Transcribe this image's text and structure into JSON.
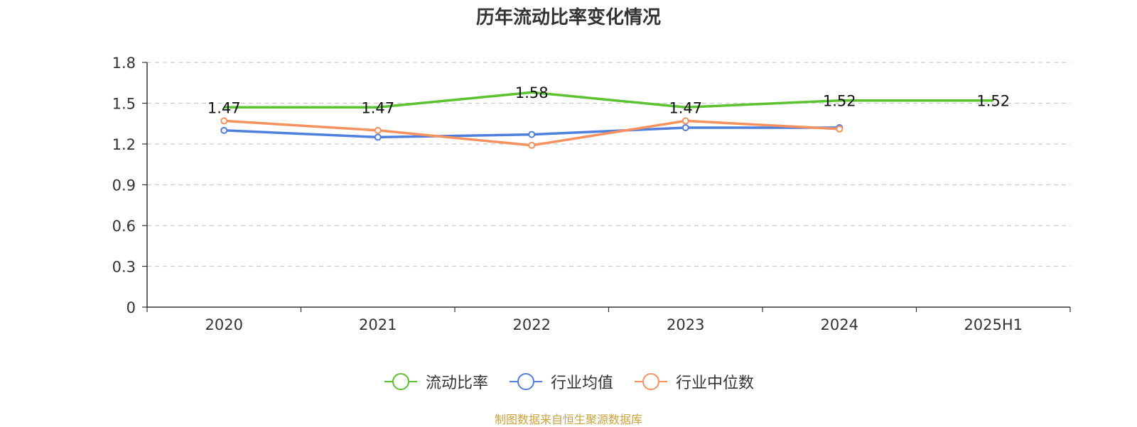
{
  "chart_data": {
    "type": "line",
    "title": "历年流动比率变化情况",
    "categories": [
      "2020",
      "2021",
      "2022",
      "2023",
      "2024",
      "2025H1"
    ],
    "ylim": [
      0,
      1.8
    ],
    "yticks": [
      "0",
      "0.3",
      "0.6",
      "0.9",
      "1.2",
      "1.5",
      "1.8"
    ],
    "grid": true,
    "legend_position": "bottom",
    "series": [
      {
        "name": "流动比率",
        "color": "#5bc230",
        "values": [
          1.47,
          1.47,
          1.58,
          1.47,
          1.52,
          1.52
        ],
        "labels": [
          "1.47",
          "1.47",
          "1.58",
          "1.47",
          "1.52",
          "1.52"
        ]
      },
      {
        "name": "行业均值",
        "color": "#4f7fdc",
        "values": [
          1.3,
          1.25,
          1.27,
          1.32,
          1.32,
          null
        ]
      },
      {
        "name": "行业中位数",
        "color": "#f79260",
        "values": [
          1.37,
          1.3,
          1.19,
          1.37,
          1.31,
          null
        ]
      }
    ]
  },
  "source": "制图数据来自恒生聚源数据库"
}
